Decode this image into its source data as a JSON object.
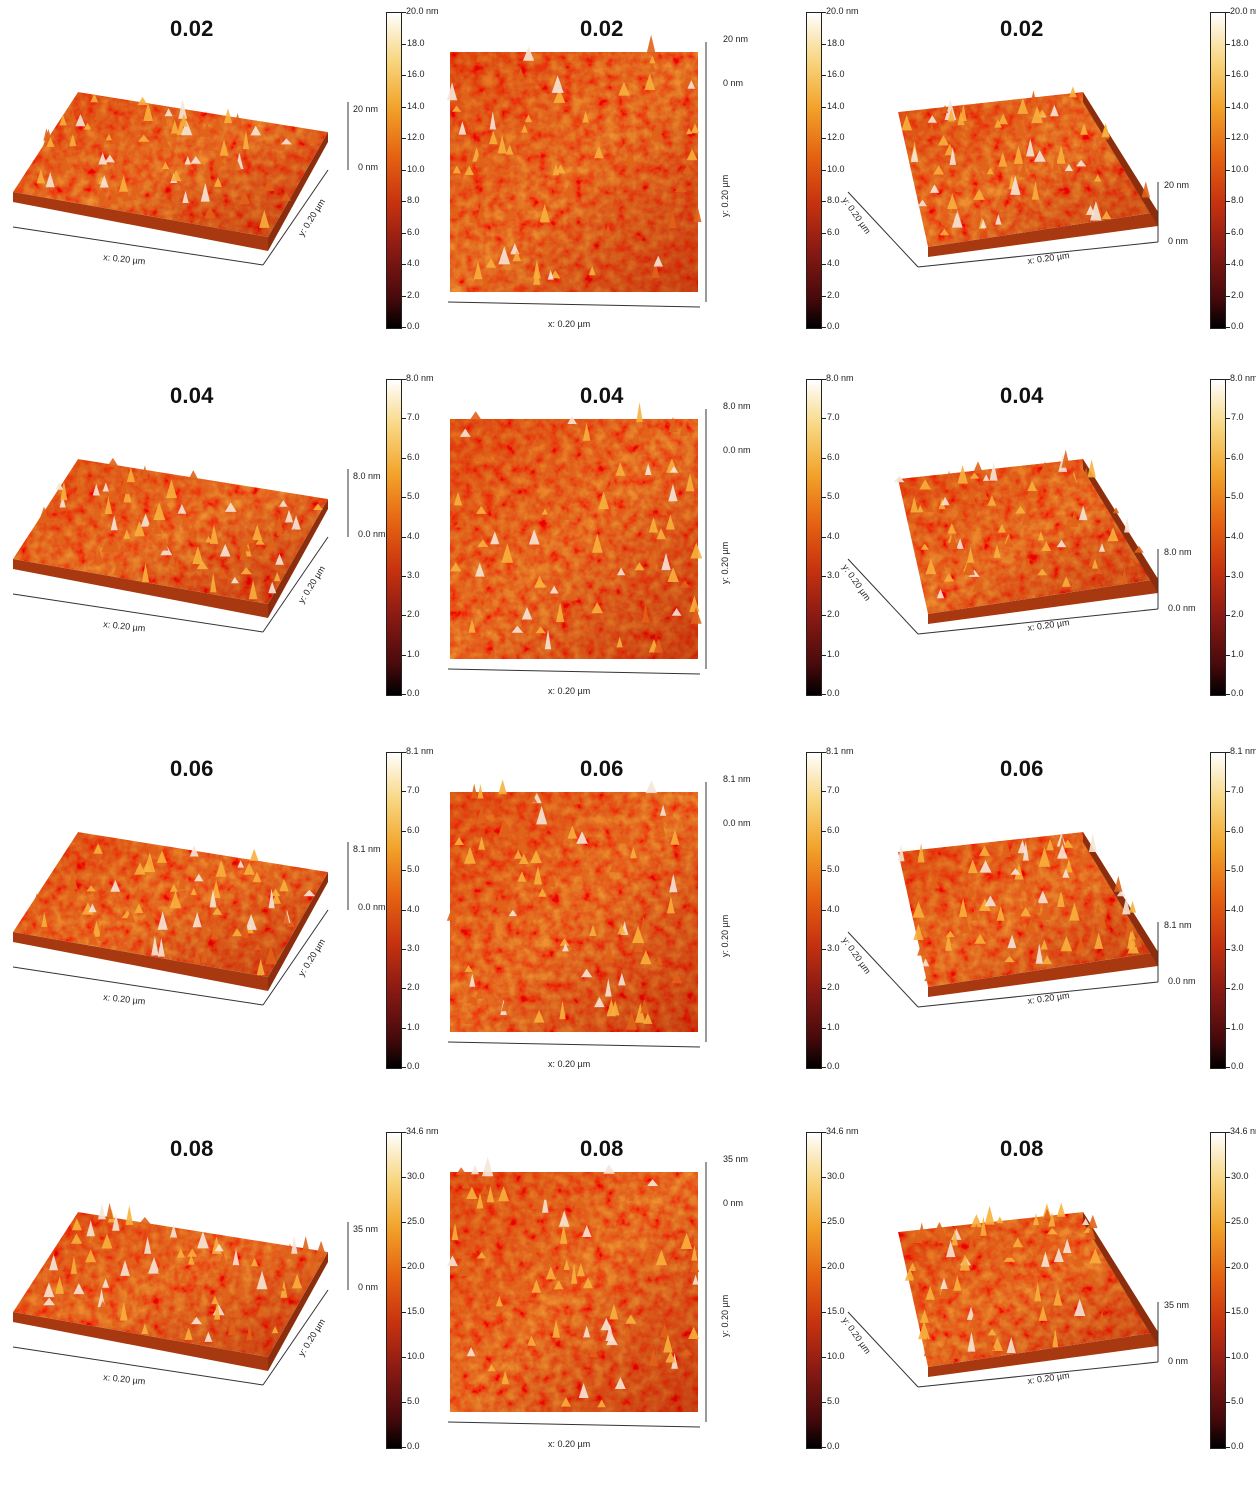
{
  "rows": [
    {
      "title": "0.02",
      "scale_top": "20.0 nm",
      "ticks": [
        "18.0",
        "16.0",
        "14.0",
        "12.0",
        "10.0",
        "8.0",
        "6.0",
        "4.0",
        "2.0",
        "0.0"
      ],
      "z_top_3d": "20 nm",
      "z_bot_3d": "0 nm",
      "z_top_2d": "20 nm",
      "z_bot_2d": "0 nm"
    },
    {
      "title": "0.04",
      "scale_top": "8.0 nm",
      "ticks": [
        "7.0",
        "6.0",
        "5.0",
        "4.0",
        "3.0",
        "2.0",
        "1.0",
        "0.0"
      ],
      "z_top_3d": "8.0 nm",
      "z_bot_3d": "0.0 nm",
      "z_top_2d": "8.0 nm",
      "z_bot_2d": "0.0 nm"
    },
    {
      "title": "0.06",
      "scale_top": "8.1 nm",
      "ticks": [
        "7.0",
        "6.0",
        "5.0",
        "4.0",
        "3.0",
        "2.0",
        "1.0",
        "0.0"
      ],
      "z_top_3d": "8.1 nm",
      "z_bot_3d": "0.0 nm",
      "z_top_2d": "8.1 nm",
      "z_bot_2d": "0.0 nm"
    },
    {
      "title": "0.08",
      "scale_top": "34.6 nm",
      "ticks": [
        "30.0",
        "25.0",
        "20.0",
        "15.0",
        "10.0",
        "5.0",
        "0.0"
      ],
      "z_top_3d": "35 nm",
      "z_bot_3d": "0 nm",
      "z_top_2d": "35 nm",
      "z_bot_2d": "0 nm"
    }
  ],
  "axis": {
    "x": "x: 0.20 µm",
    "y": "y: 0.20 µm"
  },
  "colors": {
    "low": "#000000",
    "mid": "#c8330f",
    "orange": "#e66412",
    "high": "#ffffff"
  }
}
